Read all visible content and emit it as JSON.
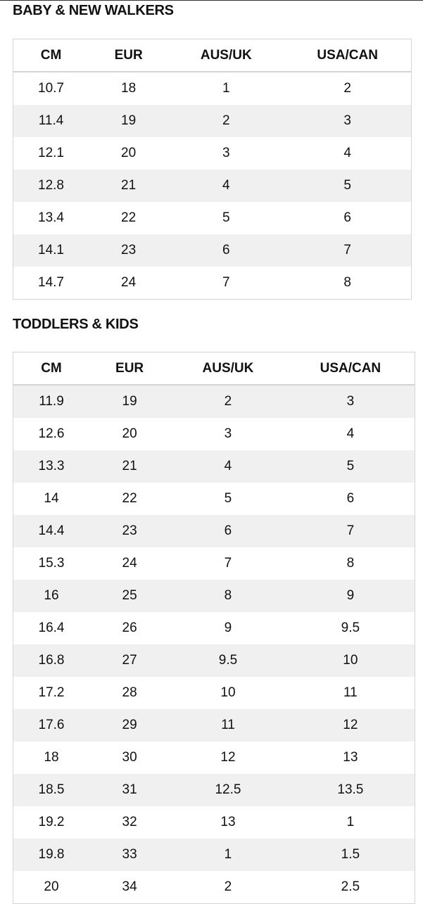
{
  "columns": [
    "CM",
    "EUR",
    "AUS/UK",
    "USA/CAN"
  ],
  "sections": [
    {
      "title": "BABY & NEW WALKERS",
      "rows": [
        [
          "10.7",
          "18",
          "1",
          "2"
        ],
        [
          "11.4",
          "19",
          "2",
          "3"
        ],
        [
          "12.1",
          "20",
          "3",
          "4"
        ],
        [
          "12.8",
          "21",
          "4",
          "5"
        ],
        [
          "13.4",
          "22",
          "5",
          "6"
        ],
        [
          "14.1",
          "23",
          "6",
          "7"
        ],
        [
          "14.7",
          "24",
          "7",
          "8"
        ]
      ]
    },
    {
      "title": "TODDLERS & KIDS",
      "rows": [
        [
          "11.9",
          "19",
          "2",
          "3"
        ],
        [
          "12.6",
          "20",
          "3",
          "4"
        ],
        [
          "13.3",
          "21",
          "4",
          "5"
        ],
        [
          "14",
          "22",
          "5",
          "6"
        ],
        [
          "14.4",
          "23",
          "6",
          "7"
        ],
        [
          "15.3",
          "24",
          "7",
          "8"
        ],
        [
          "16",
          "25",
          "8",
          "9"
        ],
        [
          "16.4",
          "26",
          "9",
          "9.5"
        ],
        [
          "16.8",
          "27",
          "9.5",
          "10"
        ],
        [
          "17.2",
          "28",
          "10",
          "11"
        ],
        [
          "17.6",
          "29",
          "11",
          "12"
        ],
        [
          "18",
          "30",
          "12",
          "13"
        ],
        [
          "18.5",
          "31",
          "12.5",
          "13.5"
        ],
        [
          "19.2",
          "32",
          "13",
          "1"
        ],
        [
          "19.8",
          "33",
          "1",
          "1.5"
        ],
        [
          "20",
          "34",
          "2",
          "2.5"
        ]
      ]
    }
  ],
  "colors": {
    "stripe": "#f0f0f0",
    "border": "#d4d4d4",
    "text": "#111111"
  }
}
